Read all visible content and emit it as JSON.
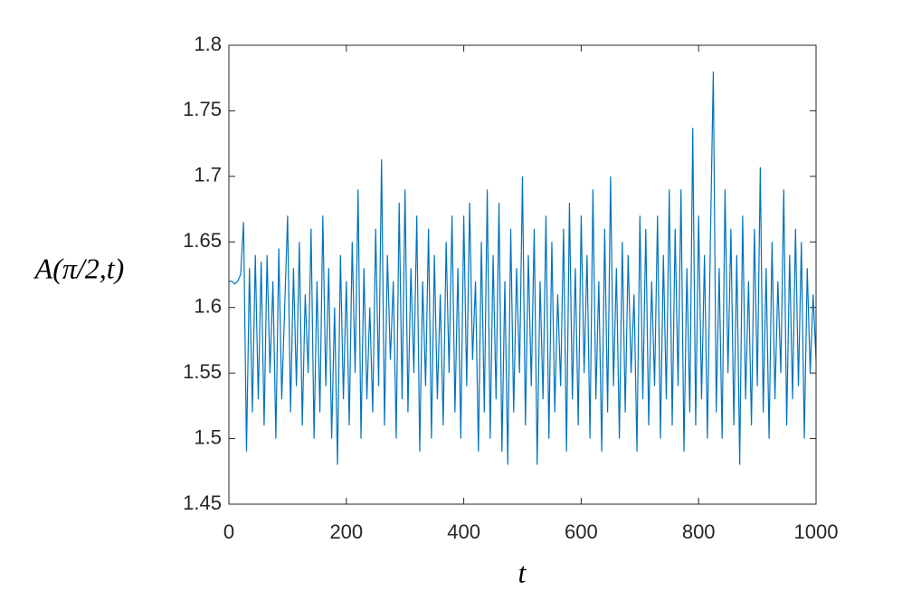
{
  "chart_data": {
    "type": "line",
    "x_label": "t",
    "y_label": "A(π/2,t)",
    "x": [
      0,
      5,
      10,
      15,
      20,
      25,
      30,
      35,
      40,
      45,
      50,
      55,
      60,
      65,
      70,
      75,
      80,
      85,
      90,
      95,
      100,
      105,
      110,
      115,
      120,
      125,
      130,
      135,
      140,
      145,
      150,
      155,
      160,
      165,
      170,
      175,
      180,
      185,
      190,
      195,
      200,
      205,
      210,
      215,
      220,
      225,
      230,
      235,
      240,
      245,
      250,
      255,
      260,
      265,
      270,
      275,
      280,
      285,
      290,
      295,
      300,
      305,
      310,
      315,
      320,
      325,
      330,
      335,
      340,
      345,
      350,
      355,
      360,
      365,
      370,
      375,
      380,
      385,
      390,
      395,
      400,
      405,
      410,
      415,
      420,
      425,
      430,
      435,
      440,
      445,
      450,
      455,
      460,
      465,
      470,
      475,
      480,
      485,
      490,
      495,
      500,
      505,
      510,
      515,
      520,
      525,
      530,
      535,
      540,
      545,
      550,
      555,
      560,
      565,
      570,
      575,
      580,
      585,
      590,
      595,
      600,
      605,
      610,
      615,
      620,
      625,
      630,
      635,
      640,
      645,
      650,
      655,
      660,
      665,
      670,
      675,
      680,
      685,
      690,
      695,
      700,
      705,
      710,
      715,
      720,
      725,
      730,
      735,
      740,
      745,
      750,
      755,
      760,
      765,
      770,
      775,
      780,
      785,
      790,
      795,
      800,
      805,
      810,
      815,
      820,
      825,
      830,
      835,
      840,
      845,
      850,
      855,
      860,
      865,
      870,
      875,
      880,
      885,
      890,
      895,
      900,
      905,
      910,
      915,
      920,
      925,
      930,
      935,
      940,
      945,
      950,
      955,
      960,
      965,
      970,
      975,
      980,
      985,
      990,
      995,
      1000
    ],
    "series": [
      {
        "name": "A",
        "color": "#0072bd",
        "values": [
          1.62,
          1.62,
          1.618,
          1.62,
          1.625,
          1.665,
          1.49,
          1.63,
          1.52,
          1.64,
          1.53,
          1.635,
          1.51,
          1.64,
          1.55,
          1.62,
          1.5,
          1.645,
          1.53,
          1.6,
          1.67,
          1.52,
          1.63,
          1.54,
          1.65,
          1.51,
          1.61,
          1.55,
          1.66,
          1.5,
          1.62,
          1.52,
          1.67,
          1.54,
          1.63,
          1.5,
          1.6,
          1.48,
          1.64,
          1.53,
          1.62,
          1.51,
          1.65,
          1.55,
          1.69,
          1.5,
          1.63,
          1.53,
          1.6,
          1.52,
          1.66,
          1.54,
          1.713,
          1.51,
          1.64,
          1.56,
          1.62,
          1.5,
          1.68,
          1.53,
          1.69,
          1.52,
          1.63,
          1.55,
          1.67,
          1.49,
          1.62,
          1.54,
          1.66,
          1.5,
          1.64,
          1.53,
          1.61,
          1.51,
          1.65,
          1.55,
          1.67,
          1.52,
          1.63,
          1.5,
          1.67,
          1.54,
          1.68,
          1.56,
          1.62,
          1.49,
          1.65,
          1.52,
          1.69,
          1.5,
          1.64,
          1.53,
          1.68,
          1.49,
          1.62,
          1.48,
          1.66,
          1.52,
          1.63,
          1.55,
          1.7,
          1.51,
          1.64,
          1.54,
          1.66,
          1.48,
          1.62,
          1.53,
          1.67,
          1.5,
          1.65,
          1.52,
          1.61,
          1.54,
          1.66,
          1.49,
          1.68,
          1.53,
          1.63,
          1.51,
          1.67,
          1.55,
          1.64,
          1.5,
          1.69,
          1.53,
          1.62,
          1.49,
          1.66,
          1.52,
          1.7,
          1.54,
          1.63,
          1.5,
          1.65,
          1.52,
          1.64,
          1.55,
          1.61,
          1.49,
          1.67,
          1.53,
          1.66,
          1.51,
          1.62,
          1.54,
          1.67,
          1.5,
          1.64,
          1.53,
          1.69,
          1.51,
          1.66,
          1.54,
          1.69,
          1.49,
          1.63,
          1.52,
          1.737,
          1.51,
          1.67,
          1.53,
          1.64,
          1.5,
          1.65,
          1.78,
          1.52,
          1.63,
          1.5,
          1.69,
          1.55,
          1.66,
          1.51,
          1.64,
          1.48,
          1.67,
          1.53,
          1.62,
          1.51,
          1.66,
          1.54,
          1.707,
          1.52,
          1.63,
          1.5,
          1.65,
          1.53,
          1.62,
          1.55,
          1.69,
          1.51,
          1.64,
          1.53,
          1.66,
          1.54,
          1.65,
          1.5,
          1.63,
          1.55,
          1.61,
          1.56
        ]
      }
    ],
    "xlim": [
      0,
      1000
    ],
    "xticks": [
      0,
      200,
      400,
      600,
      800,
      1000
    ],
    "ylim": [
      1.45,
      1.8
    ],
    "yticks": [
      1.45,
      1.5,
      1.55,
      1.6,
      1.65,
      1.7,
      1.75,
      1.8
    ]
  }
}
